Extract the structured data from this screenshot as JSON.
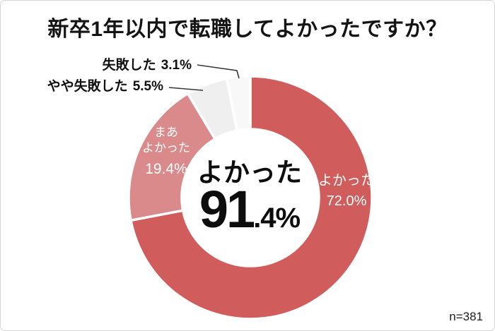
{
  "title": "新卒1年以内で転職してよかったですか？",
  "footnote": "n=381",
  "center_label": {
    "category": "よかった",
    "value_main": "91",
    "value_rest": ".4%",
    "value_full": "91.4%"
  },
  "slice_labels": {
    "yokatta": {
      "line1": "よかった",
      "line2": "72.0%"
    },
    "maa_yokatta": {
      "line1": "まあ",
      "line2": "よかった",
      "line3": "19.4%"
    },
    "yaya_shippai": {
      "name": "やや失敗した",
      "value": "5.5%"
    },
    "shippai": {
      "name": "失敗した",
      "value": "3.1%"
    }
  },
  "chart_data": {
    "type": "pie",
    "subtype": "donut",
    "title": "新卒1年以内で転職してよかったですか？",
    "categories": [
      "よかった",
      "まあよかった",
      "やや失敗した",
      "失敗した"
    ],
    "values": [
      72.0,
      19.4,
      5.5,
      3.1
    ],
    "value_labels": [
      "72.0%",
      "19.4%",
      "5.5%",
      "3.1%"
    ],
    "colors": [
      "#d15c5c",
      "#da8a8a",
      "#efefef",
      "#f8f8f8"
    ],
    "separator_color": "#ffffff",
    "start_angle_deg": 0,
    "direction": "clockwise",
    "legend_position": "none",
    "center_text": "よかった 91.4%",
    "sample_size": "n=381",
    "label_color_inside": "#ffffff",
    "label_color_outside": "#111111"
  }
}
